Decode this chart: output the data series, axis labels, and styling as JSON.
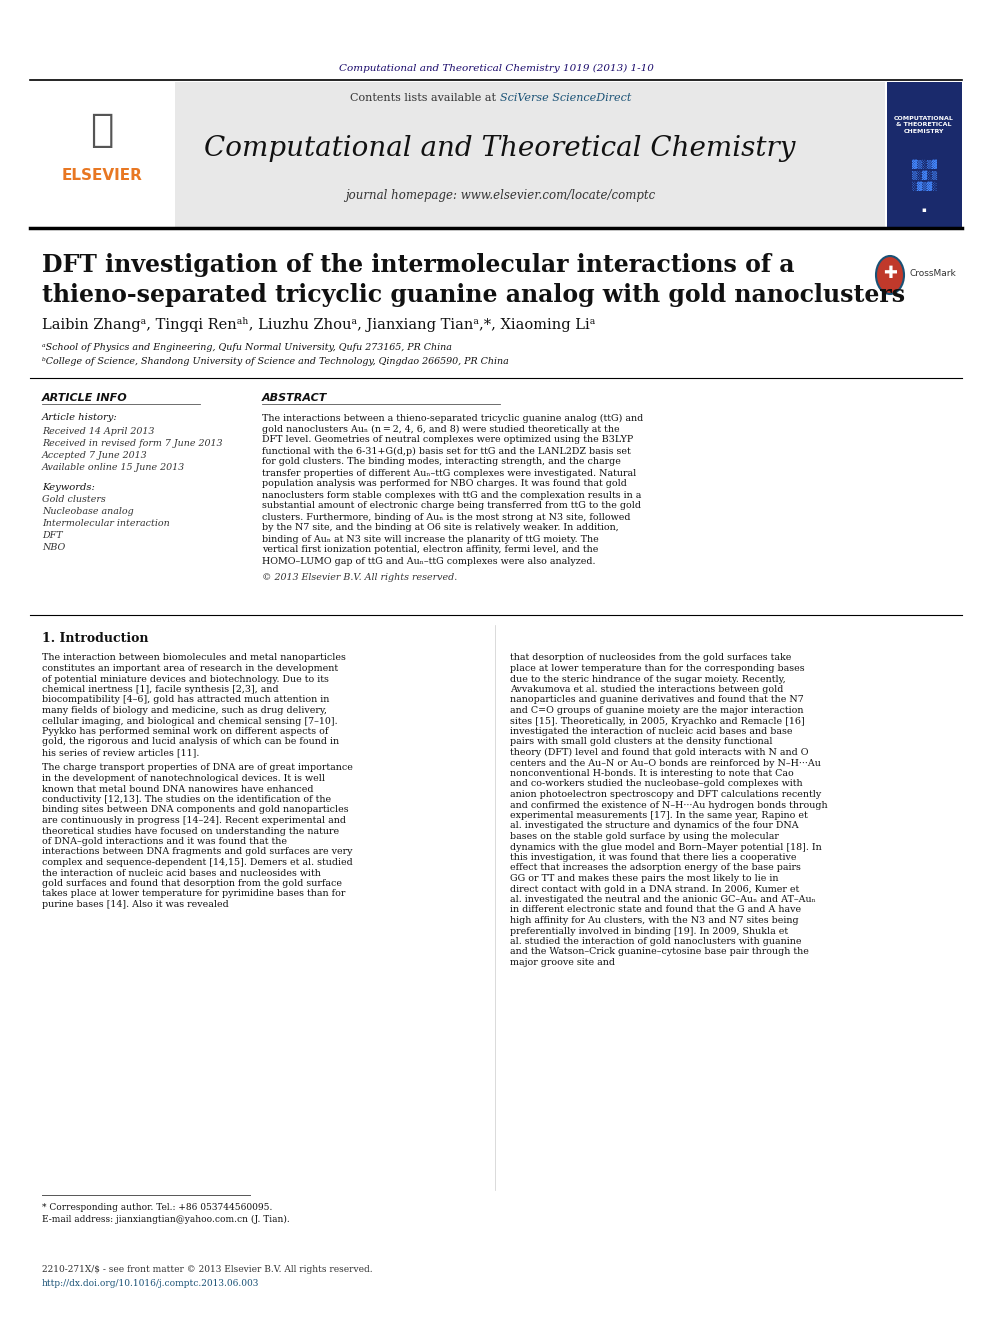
{
  "journal_ref": "Computational and Theoretical Chemistry 1019 (2013) 1-10",
  "journal_ref_color": "#1a0a6b",
  "header_bg_color": "#e8e8e8",
  "journal_name": "Computational and Theoretical Chemistry",
  "contents_line": "Contents lists available at ",
  "sciverse_text": "SciVerse ScienceDirect",
  "sciverse_color": "#1a5276",
  "homepage_line": "journal homepage: www.elsevier.com/locate/comptc",
  "article_title_line1": "DFT investigation of the intermolecular interactions of a",
  "article_title_line2": "thieno-separated tricyclic guanine analog with gold nanoclusters",
  "authors": "Laibin Zhang",
  "authors_full": "Laibin Zhangᵃ, Tingqi Renᵃʰ, Liuzhu Zhouᵃ, Jianxiang Tianᵃ,*, Xiaoming Liᵃ",
  "affil_a": "ᵃSchool of Physics and Engineering, Qufu Normal University, Qufu 273165, PR China",
  "affil_b": "ᵇCollege of Science, Shandong University of Science and Technology, Qingdao 266590, PR China",
  "section_article_info": "ARTICLE INFO",
  "section_abstract": "ABSTRACT",
  "article_history_header": "Article history:",
  "received_line": "Received 14 April 2013",
  "revised_line": "Received in revised form 7 June 2013",
  "accepted_line": "Accepted 7 June 2013",
  "available_line": "Available online 15 June 2013",
  "keywords_header": "Keywords:",
  "keyword1": "Gold clusters",
  "keyword2": "Nucleobase analog",
  "keyword3": "Intermolecular interaction",
  "keyword4": "DFT",
  "keyword5": "NBO",
  "abstract_text": "The interactions between a thieno-separated tricyclic guanine analog (ttG) and gold nanoclusters Auₙ (n = 2, 4, 6, and 8) were studied theoretically at the DFT level. Geometries of neutral complexes were optimized using the B3LYP functional with the 6-31+G(d,p) basis set for ttG and the LANL2DZ basis set for gold clusters. The binding modes, interacting strength, and the charge transfer properties of different Auₙ–ttG complexes were investigated. Natural population analysis was performed for NBO charges. It was found that gold nanoclusters form stable complexes with ttG and the complexation results in a substantial amount of electronic charge being transferred from ttG to the gold clusters. Furthermore, binding of Auₙ is the most strong at N3 site, followed by the N7 site, and the binding at O6 site is relatively weaker. In addition, binding of Auₙ at N3 site will increase the planarity of ttG moiety. The vertical first ionization potential, electron affinity, fermi level, and the HOMO–LUMO gap of ttG and Auₙ–ttG complexes were also analyzed.",
  "copyright_line": "© 2013 Elsevier B.V. All rights reserved.",
  "intro_header": "1. Introduction",
  "intro_col1_para1": "The interaction between biomolecules and metal nanoparticles constitutes an important area of research in the development of potential miniature devices and biotechnology. Due to its chemical inertness [1], facile synthesis [2,3], and biocompatibility [4–6], gold has attracted much attention in many fields of biology and medicine, such as drug delivery, cellular imaging, and biological and chemical sensing [7–10]. Pyykko has performed seminal work on different aspects of gold, the rigorous and lucid analysis of which can be found in his series of review articles [11].",
  "intro_col1_para2": "The charge transport properties of DNA are of great importance in the development of nanotechnological devices. It is well known that metal bound DNA nanowires have enhanced conductivity [12,13]. The studies on the identification of the binding sites between DNA components and gold nanoparticles are continuously in progress [14–24]. Recent experimental and theoretical studies have focused on understanding the nature of DNA–gold interactions and it was found that the interactions between DNA fragments and gold surfaces are very complex and sequence-dependent [14,15]. Demers et al. studied the interaction of nucleic acid bases and nucleosides with gold surfaces and found that desorption from the gold surface takes place at lower temperature for pyrimidine bases than for purine bases [14]. Also it was revealed",
  "intro_col2_para1": "that desorption of nucleosides from the gold surfaces take place at lower temperature than for the corresponding bases due to the steric hindrance of the sugar moiety. Recently, Avvakumova et al. studied the interactions between gold nanoparticles and guanine derivatives and found that the N7 and C=O groups of guanine moiety are the major interaction sites [15]. Theoretically, in 2005, Kryachko and Remacle [16] investigated the interaction of nucleic acid bases and base pairs with small gold clusters at the density functional theory (DFT) level and found that gold interacts with N and O centers and the Au–N or Au–O bonds are reinforced by N–H···Au nonconventional H-bonds. It is interesting to note that Cao and co-workers studied the nucleobase–gold complexes with anion photoelectron spectroscopy and DFT calculations recently and confirmed the existence of N–H···Au hydrogen bonds through experimental measurements [17]. In the same year, Rapino et al. investigated the structure and dynamics of the four DNA bases on the stable gold surface by using the molecular dynamics with the glue model and Born–Mayer potential [18]. In this investigation, it was found that there lies a cooperative effect that increases the adsorption energy of the base pairs GG or TT and makes these pairs the most likely to lie in direct contact with gold in a DNA strand. In 2006, Kumer et al. investigated the neutral and the anionic GC–Auₙ and AT–Auₙ in different electronic state and found that the G and A have high affinity for Au clusters, with the N3 and N7 sites being preferentially involved in binding [19]. In 2009, Shukla et al. studied the interaction of gold nanoclusters with guanine and the Watson–Crick guanine–cytosine base pair through the major groove site and",
  "footnote_star": "* Corresponding author. Tel.: +86 053744560095.",
  "footnote_email": "E-mail address: jianxiangtian@yahoo.com.cn (J. Tian).",
  "issn_line": "2210-271X/$ - see front matter © 2013 Elsevier B.V. All rights reserved.",
  "doi_line": "http://dx.doi.org/10.1016/j.comptc.2013.06.003",
  "page_bg": "#ffffff",
  "text_color": "#000000",
  "dark_color": "#1a1a1a",
  "elsevier_orange": "#e87722",
  "elsevier_text": "ELSEVIER"
}
